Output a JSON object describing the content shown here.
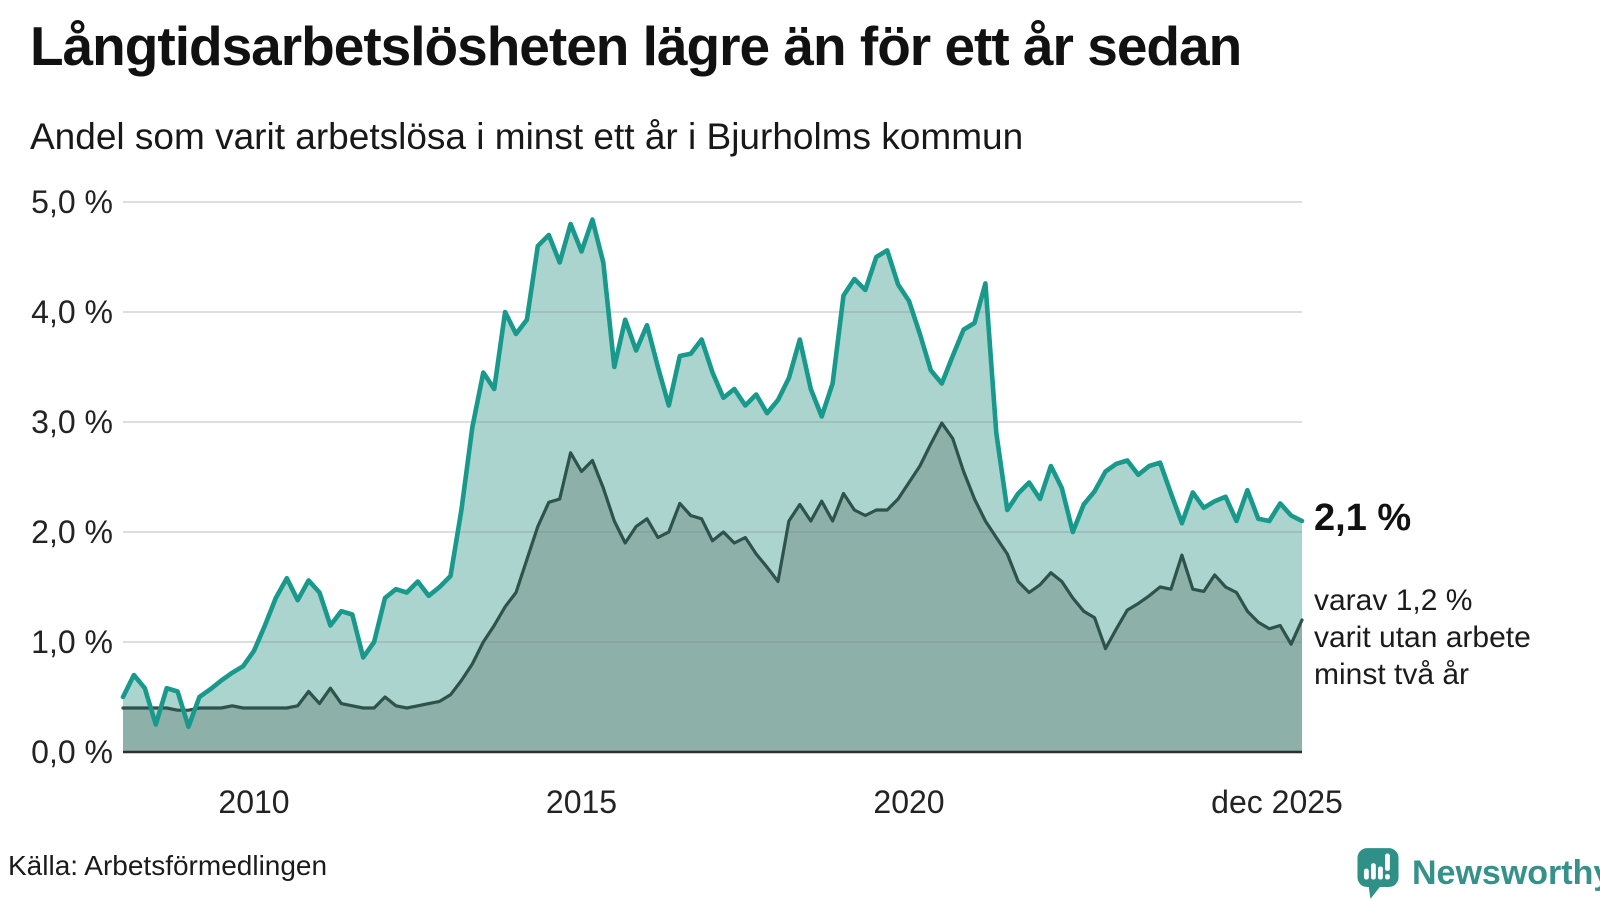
{
  "title": "Långtidsarbetslösheten lägre än för ett år sedan",
  "subtitle": "Andel som varit arbetslösa i minst ett år i Bjurholms kommun",
  "source": "Källa: Arbetsförmedlingen",
  "logo": {
    "brand": "Newsworthy"
  },
  "annotation": {
    "latest_value": "2,1 %",
    "secondary_lines": [
      "varav 1,2 %",
      "varit utan arbete",
      "minst två år"
    ]
  },
  "colors": {
    "total_line": "#18998b",
    "total_fill": "#aad4cd",
    "two_year_line": "#2e524c",
    "two_year_fill": "rgba(98,123,116,0.40)",
    "gridline": "rgba(130,135,145,0.28)",
    "axis": "#2e2e2e",
    "logo_teal": "#35918a",
    "text": "#111111"
  },
  "chart_data": {
    "type": "area",
    "title": "Långtidsarbetslösheten lägre än för ett år sedan",
    "subtitle": "Andel som varit arbetslösa i minst ett år i Bjurholms kommun",
    "unit": "%",
    "x_start": 2008.0,
    "x_end": 2026.0,
    "points_interval_months": 2,
    "grid": "horizontal",
    "legend_position": "none",
    "y_axis": {
      "min": 0.0,
      "max": 5.0,
      "tick_values": [
        5.0,
        4.0,
        3.0,
        2.0,
        1.0,
        0.0
      ],
      "tick_labels": [
        "5,0 %",
        "4,0 %",
        "3,0 %",
        "2,0 %",
        "1,0 %",
        "0,0 %"
      ]
    },
    "x_axis": {
      "ticks": [
        {
          "label": "2010",
          "year": 2010
        },
        {
          "label": "2015",
          "year": 2015
        },
        {
          "label": "2020",
          "year": 2020
        },
        {
          "label": "dec 2025",
          "year": 2025.92,
          "align": "end"
        }
      ]
    },
    "series": [
      {
        "name": "Andel arbetslösa minst ett år",
        "latest_label": "2,1 %",
        "values": [
          0.5,
          0.7,
          0.58,
          0.25,
          0.58,
          0.55,
          0.23,
          0.5,
          0.57,
          0.65,
          0.72,
          0.78,
          0.92,
          1.15,
          1.4,
          1.58,
          1.38,
          1.56,
          1.45,
          1.15,
          1.28,
          1.25,
          0.86,
          1.0,
          1.4,
          1.48,
          1.45,
          1.55,
          1.42,
          1.5,
          1.6,
          2.2,
          2.95,
          3.45,
          3.3,
          4.0,
          3.8,
          3.93,
          4.6,
          4.7,
          4.45,
          4.8,
          4.55,
          4.84,
          4.45,
          3.5,
          3.93,
          3.65,
          3.88,
          3.5,
          3.15,
          3.6,
          3.62,
          3.75,
          3.45,
          3.22,
          3.3,
          3.15,
          3.25,
          3.08,
          3.2,
          3.4,
          3.75,
          3.3,
          3.05,
          3.35,
          4.15,
          4.3,
          4.2,
          4.5,
          4.56,
          4.25,
          4.1,
          3.8,
          3.47,
          3.35,
          3.6,
          3.84,
          3.9,
          4.26,
          2.9,
          2.2,
          2.35,
          2.45,
          2.3,
          2.6,
          2.4,
          2.0,
          2.25,
          2.37,
          2.55,
          2.62,
          2.65,
          2.52,
          2.6,
          2.63,
          2.35,
          2.08,
          2.36,
          2.22,
          2.28,
          2.32,
          2.1,
          2.38,
          2.12,
          2.1,
          2.26,
          2.15,
          2.1
        ]
      },
      {
        "name": "Varav utan arbete minst två år",
        "latest_label": "1,2 %",
        "values": [
          0.4,
          0.4,
          0.4,
          0.4,
          0.4,
          0.38,
          0.38,
          0.4,
          0.4,
          0.4,
          0.42,
          0.4,
          0.4,
          0.4,
          0.4,
          0.4,
          0.42,
          0.55,
          0.44,
          0.58,
          0.44,
          0.42,
          0.4,
          0.4,
          0.5,
          0.42,
          0.4,
          0.42,
          0.44,
          0.46,
          0.52,
          0.65,
          0.8,
          1.0,
          1.15,
          1.32,
          1.45,
          1.75,
          2.05,
          2.27,
          2.3,
          2.72,
          2.55,
          2.65,
          2.4,
          2.1,
          1.9,
          2.05,
          2.12,
          1.95,
          2.0,
          2.26,
          2.15,
          2.12,
          1.92,
          2.0,
          1.9,
          1.95,
          1.8,
          1.68,
          1.55,
          2.1,
          2.25,
          2.1,
          2.28,
          2.1,
          2.35,
          2.2,
          2.15,
          2.2,
          2.2,
          2.3,
          2.45,
          2.6,
          2.8,
          2.99,
          2.85,
          2.55,
          2.3,
          2.1,
          1.95,
          1.8,
          1.55,
          1.45,
          1.52,
          1.63,
          1.55,
          1.4,
          1.28,
          1.22,
          0.94,
          1.12,
          1.29,
          1.35,
          1.42,
          1.5,
          1.48,
          1.79,
          1.48,
          1.46,
          1.61,
          1.5,
          1.45,
          1.28,
          1.18,
          1.12,
          1.15,
          0.98,
          1.2
        ]
      }
    ]
  }
}
